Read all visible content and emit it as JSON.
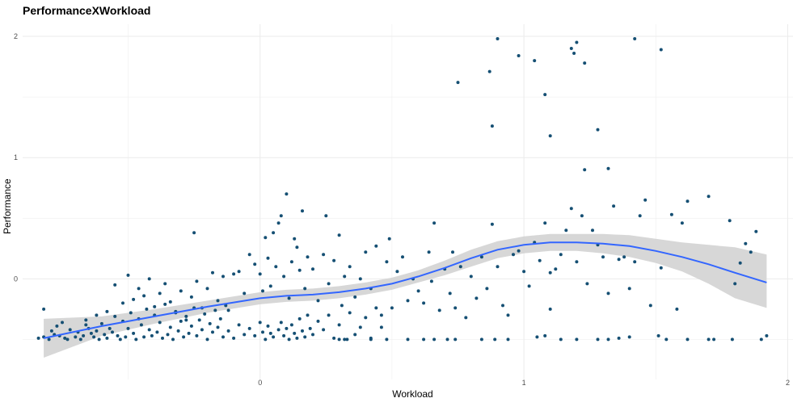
{
  "chart_data": {
    "type": "scatter",
    "title": "PerformanceXWorkload",
    "xlabel": "Workload",
    "ylabel": "Performance",
    "xlim": [
      -0.9,
      2.02
    ],
    "ylim": [
      -0.83,
      2.1
    ],
    "x_ticks": [
      "0",
      "1",
      "2"
    ],
    "y_ticks": [
      "0",
      "1",
      "2"
    ],
    "x_tick_values": [
      0,
      1,
      2
    ],
    "y_tick_values": [
      0,
      1,
      2
    ],
    "grid": true,
    "point_color": "#154f73",
    "smooth_color": "#3366ff",
    "ribbon_color": "#d3d3d3",
    "points": [
      [
        -0.84,
        -0.49
      ],
      [
        -0.82,
        -0.48
      ],
      [
        -0.82,
        -0.25
      ],
      [
        -0.8,
        -0.5
      ],
      [
        -0.79,
        -0.43
      ],
      [
        -0.78,
        -0.46
      ],
      [
        -0.77,
        -0.39
      ],
      [
        -0.76,
        -0.47
      ],
      [
        -0.75,
        -0.36
      ],
      [
        -0.74,
        -0.49
      ],
      [
        -0.73,
        -0.5
      ],
      [
        -0.72,
        -0.42
      ],
      [
        -0.7,
        -0.48
      ],
      [
        -0.69,
        -0.44
      ],
      [
        -0.68,
        -0.5
      ],
      [
        -0.67,
        -0.47
      ],
      [
        -0.66,
        -0.38
      ],
      [
        -0.65,
        -0.41
      ],
      [
        -0.64,
        -0.45
      ],
      [
        -0.63,
        -0.48
      ],
      [
        -0.62,
        -0.43
      ],
      [
        -0.61,
        -0.5
      ],
      [
        -0.6,
        -0.37
      ],
      [
        -0.59,
        -0.46
      ],
      [
        -0.58,
        -0.49
      ],
      [
        -0.57,
        -0.41
      ],
      [
        -0.56,
        -0.44
      ],
      [
        -0.55,
        -0.31
      ],
      [
        -0.54,
        -0.47
      ],
      [
        -0.53,
        -0.5
      ],
      [
        -0.52,
        -0.35
      ],
      [
        -0.51,
        -0.48
      ],
      [
        -0.5,
        -0.41
      ],
      [
        -0.49,
        -0.28
      ],
      [
        -0.48,
        -0.45
      ],
      [
        -0.47,
        -0.5
      ],
      [
        -0.46,
        -0.33
      ],
      [
        -0.45,
        -0.38
      ],
      [
        -0.44,
        -0.48
      ],
      [
        -0.43,
        -0.25
      ],
      [
        -0.42,
        -0.42
      ],
      [
        -0.41,
        -0.47
      ],
      [
        -0.4,
        -0.3
      ],
      [
        -0.39,
        -0.44
      ],
      [
        -0.38,
        -0.36
      ],
      [
        -0.37,
        -0.49
      ],
      [
        -0.36,
        -0.21
      ],
      [
        -0.35,
        -0.46
      ],
      [
        -0.34,
        -0.4
      ],
      [
        -0.33,
        -0.5
      ],
      [
        -0.32,
        -0.27
      ],
      [
        -0.31,
        -0.43
      ],
      [
        -0.3,
        -0.35
      ],
      [
        -0.29,
        -0.48
      ],
      [
        -0.28,
        -0.31
      ],
      [
        -0.27,
        -0.45
      ],
      [
        -0.26,
        -0.39
      ],
      [
        -0.25,
        -0.24
      ],
      [
        -0.24,
        -0.47
      ],
      [
        -0.23,
        -0.34
      ],
      [
        -0.22,
        -0.42
      ],
      [
        -0.21,
        -0.29
      ],
      [
        -0.2,
        -0.5
      ],
      [
        -0.19,
        -0.37
      ],
      [
        -0.18,
        -0.44
      ],
      [
        -0.17,
        -0.26
      ],
      [
        -0.16,
        -0.4
      ],
      [
        -0.15,
        -0.33
      ],
      [
        -0.14,
        -0.48
      ],
      [
        -0.13,
        -0.22
      ],
      [
        -0.66,
        -0.34
      ],
      [
        -0.62,
        -0.3
      ],
      [
        -0.58,
        -0.27
      ],
      [
        -0.55,
        -0.05
      ],
      [
        -0.52,
        -0.2
      ],
      [
        -0.5,
        0.03
      ],
      [
        -0.48,
        -0.17
      ],
      [
        -0.46,
        -0.08
      ],
      [
        -0.44,
        -0.14
      ],
      [
        -0.42,
        0.0
      ],
      [
        -0.4,
        -0.23
      ],
      [
        -0.38,
        -0.12
      ],
      [
        -0.36,
        -0.04
      ],
      [
        -0.34,
        -0.19
      ],
      [
        -0.32,
        -0.28
      ],
      [
        -0.3,
        -0.1
      ],
      [
        -0.28,
        -0.34
      ],
      [
        -0.26,
        -0.15
      ],
      [
        -0.25,
        0.38
      ],
      [
        -0.24,
        -0.02
      ],
      [
        -0.22,
        -0.24
      ],
      [
        -0.2,
        -0.08
      ],
      [
        -0.18,
        0.05
      ],
      [
        -0.16,
        -0.18
      ],
      [
        -0.14,
        0.02
      ],
      [
        -0.12,
        -0.26
      ],
      [
        -0.1,
        0.04
      ],
      [
        -0.08,
        0.06
      ],
      [
        -0.06,
        -0.12
      ],
      [
        -0.04,
        0.2
      ],
      [
        -0.12,
        -0.43
      ],
      [
        -0.1,
        -0.49
      ],
      [
        -0.08,
        -0.38
      ],
      [
        -0.06,
        -0.46
      ],
      [
        -0.04,
        -0.41
      ],
      [
        -0.02,
        -0.47
      ],
      [
        0.0,
        -0.36
      ],
      [
        0.01,
        -0.44
      ],
      [
        0.02,
        -0.5
      ],
      [
        0.03,
        -0.39
      ],
      [
        0.04,
        -0.45
      ],
      [
        0.05,
        -0.48
      ],
      [
        0.07,
        -0.42
      ],
      [
        0.08,
        -0.36
      ],
      [
        0.09,
        -0.47
      ],
      [
        0.1,
        -0.41
      ],
      [
        0.11,
        -0.5
      ],
      [
        0.12,
        -0.38
      ],
      [
        0.13,
        -0.45
      ],
      [
        0.14,
        -0.49
      ],
      [
        0.15,
        -0.33
      ],
      [
        0.16,
        -0.43
      ],
      [
        0.17,
        -0.48
      ],
      [
        0.18,
        -0.3
      ],
      [
        0.19,
        -0.41
      ],
      [
        0.2,
        -0.46
      ],
      [
        0.22,
        -0.35
      ],
      [
        0.24,
        -0.42
      ],
      [
        0.26,
        -0.3
      ],
      [
        0.28,
        -0.49
      ],
      [
        0.3,
        -0.38
      ],
      [
        0.32,
        -0.5
      ],
      [
        0.34,
        -0.28
      ],
      [
        0.36,
        -0.46
      ],
      [
        0.38,
        -0.4
      ],
      [
        0.4,
        -0.32
      ],
      [
        0.42,
        -0.49
      ],
      [
        0.44,
        -0.24
      ],
      [
        0.46,
        -0.4
      ],
      [
        0.48,
        -0.5
      ],
      [
        -0.02,
        0.12
      ],
      [
        0.0,
        0.04
      ],
      [
        0.01,
        -0.1
      ],
      [
        0.02,
        0.34
      ],
      [
        0.03,
        0.17
      ],
      [
        0.04,
        -0.06
      ],
      [
        0.05,
        0.38
      ],
      [
        0.06,
        0.1
      ],
      [
        0.07,
        0.46
      ],
      [
        0.08,
        0.52
      ],
      [
        0.09,
        0.02
      ],
      [
        0.1,
        0.7
      ],
      [
        0.11,
        -0.16
      ],
      [
        0.12,
        0.14
      ],
      [
        0.13,
        0.33
      ],
      [
        0.14,
        0.26
      ],
      [
        0.15,
        0.07
      ],
      [
        0.16,
        0.56
      ],
      [
        0.17,
        -0.08
      ],
      [
        0.18,
        0.18
      ],
      [
        0.2,
        0.08
      ],
      [
        0.22,
        -0.18
      ],
      [
        0.24,
        0.2
      ],
      [
        0.25,
        0.52
      ],
      [
        0.26,
        -0.04
      ],
      [
        0.28,
        0.15
      ],
      [
        0.3,
        0.36
      ],
      [
        0.31,
        -0.22
      ],
      [
        0.32,
        0.02
      ],
      [
        0.34,
        0.1
      ],
      [
        0.36,
        -0.15
      ],
      [
        0.38,
        0.0
      ],
      [
        0.4,
        0.22
      ],
      [
        0.42,
        -0.08
      ],
      [
        0.44,
        0.27
      ],
      [
        0.46,
        -0.3
      ],
      [
        0.48,
        0.14
      ],
      [
        0.49,
        0.33
      ],
      [
        0.5,
        -0.24
      ],
      [
        0.52,
        0.06
      ],
      [
        0.54,
        0.18
      ],
      [
        0.56,
        -0.18
      ],
      [
        0.58,
        0.0
      ],
      [
        0.6,
        -0.1
      ],
      [
        0.62,
        -0.2
      ],
      [
        0.64,
        0.22
      ],
      [
        0.65,
        -0.02
      ],
      [
        0.66,
        0.46
      ],
      [
        0.68,
        -0.26
      ],
      [
        0.7,
        0.08
      ],
      [
        0.72,
        -0.12
      ],
      [
        0.73,
        0.22
      ],
      [
        0.74,
        -0.24
      ],
      [
        0.76,
        0.1
      ],
      [
        0.78,
        -0.32
      ],
      [
        0.8,
        0.02
      ],
      [
        0.82,
        -0.16
      ],
      [
        0.84,
        0.18
      ],
      [
        0.86,
        -0.08
      ],
      [
        0.88,
        0.45
      ],
      [
        0.9,
        0.1
      ],
      [
        0.92,
        -0.22
      ],
      [
        0.94,
        -0.3
      ],
      [
        0.96,
        0.2
      ],
      [
        0.98,
        0.23
      ],
      [
        1.0,
        0.06
      ],
      [
        1.02,
        -0.06
      ],
      [
        1.04,
        0.3
      ],
      [
        1.06,
        0.15
      ],
      [
        1.08,
        0.46
      ],
      [
        1.1,
        -0.25
      ],
      [
        1.12,
        0.08
      ],
      [
        1.14,
        0.2
      ],
      [
        1.16,
        0.4
      ],
      [
        1.18,
        0.58
      ],
      [
        1.2,
        0.14
      ],
      [
        1.22,
        0.52
      ],
      [
        1.24,
        -0.04
      ],
      [
        1.26,
        0.4
      ],
      [
        1.28,
        0.28
      ],
      [
        1.3,
        0.18
      ],
      [
        1.32,
        -0.12
      ],
      [
        1.34,
        0.6
      ],
      [
        1.36,
        0.16
      ],
      [
        1.38,
        0.18
      ],
      [
        1.4,
        -0.08
      ],
      [
        1.42,
        0.14
      ],
      [
        1.44,
        0.52
      ],
      [
        1.46,
        0.65
      ],
      [
        1.48,
        -0.22
      ],
      [
        1.52,
        0.09
      ],
      [
        1.56,
        0.53
      ],
      [
        1.58,
        -0.25
      ],
      [
        1.6,
        0.46
      ],
      [
        1.62,
        0.64
      ],
      [
        1.7,
        0.68
      ],
      [
        1.78,
        0.48
      ],
      [
        1.8,
        -0.04
      ],
      [
        1.82,
        0.13
      ],
      [
        1.84,
        0.29
      ],
      [
        1.86,
        0.22
      ],
      [
        1.88,
        0.39
      ],
      [
        0.75,
        1.62
      ],
      [
        0.87,
        1.71
      ],
      [
        0.88,
        1.26
      ],
      [
        0.9,
        1.98
      ],
      [
        0.98,
        1.84
      ],
      [
        1.04,
        1.8
      ],
      [
        1.08,
        1.52
      ],
      [
        1.1,
        1.18
      ],
      [
        1.18,
        1.9
      ],
      [
        1.19,
        1.86
      ],
      [
        1.2,
        1.95
      ],
      [
        1.23,
        1.78
      ],
      [
        1.28,
        1.23
      ],
      [
        1.23,
        0.9
      ],
      [
        1.32,
        0.91
      ],
      [
        1.42,
        1.98
      ],
      [
        1.52,
        1.89
      ],
      [
        1.1,
        0.05
      ],
      [
        0.3,
        -0.5
      ],
      [
        0.33,
        -0.5
      ],
      [
        0.42,
        -0.5
      ],
      [
        0.56,
        -0.5
      ],
      [
        0.62,
        -0.5
      ],
      [
        0.66,
        -0.5
      ],
      [
        0.71,
        -0.5
      ],
      [
        0.74,
        -0.5
      ],
      [
        0.84,
        -0.5
      ],
      [
        0.89,
        -0.5
      ],
      [
        0.94,
        -0.5
      ],
      [
        1.05,
        -0.48
      ],
      [
        1.08,
        -0.47
      ],
      [
        1.14,
        -0.5
      ],
      [
        1.2,
        -0.5
      ],
      [
        1.28,
        -0.5
      ],
      [
        1.32,
        -0.5
      ],
      [
        1.36,
        -0.49
      ],
      [
        1.4,
        -0.48
      ],
      [
        1.51,
        -0.47
      ],
      [
        1.54,
        -0.5
      ],
      [
        1.62,
        -0.5
      ],
      [
        1.7,
        -0.5
      ],
      [
        1.72,
        -0.5
      ],
      [
        1.79,
        -0.5
      ],
      [
        1.9,
        -0.5
      ],
      [
        1.92,
        -0.47
      ]
    ],
    "smooth": {
      "x": [
        -0.82,
        -0.6,
        -0.4,
        -0.2,
        0.0,
        0.1,
        0.2,
        0.3,
        0.4,
        0.5,
        0.6,
        0.7,
        0.8,
        0.9,
        1.0,
        1.1,
        1.2,
        1.3,
        1.4,
        1.5,
        1.6,
        1.7,
        1.8,
        1.92
      ],
      "y": [
        -0.49,
        -0.39,
        -0.31,
        -0.23,
        -0.16,
        -0.14,
        -0.13,
        -0.11,
        -0.08,
        -0.04,
        0.02,
        0.09,
        0.17,
        0.24,
        0.28,
        0.3,
        0.3,
        0.29,
        0.27,
        0.23,
        0.18,
        0.12,
        0.05,
        -0.03
      ],
      "lower": [
        -0.65,
        -0.47,
        -0.37,
        -0.28,
        -0.21,
        -0.19,
        -0.18,
        -0.16,
        -0.13,
        -0.09,
        -0.03,
        0.03,
        0.1,
        0.17,
        0.21,
        0.23,
        0.23,
        0.21,
        0.18,
        0.13,
        0.06,
        -0.04,
        -0.16,
        -0.24
      ],
      "upper": [
        -0.33,
        -0.31,
        -0.25,
        -0.18,
        -0.11,
        -0.09,
        -0.08,
        -0.06,
        -0.03,
        0.01,
        0.07,
        0.15,
        0.24,
        0.31,
        0.35,
        0.37,
        0.37,
        0.37,
        0.36,
        0.33,
        0.3,
        0.28,
        0.26,
        0.2
      ]
    }
  }
}
